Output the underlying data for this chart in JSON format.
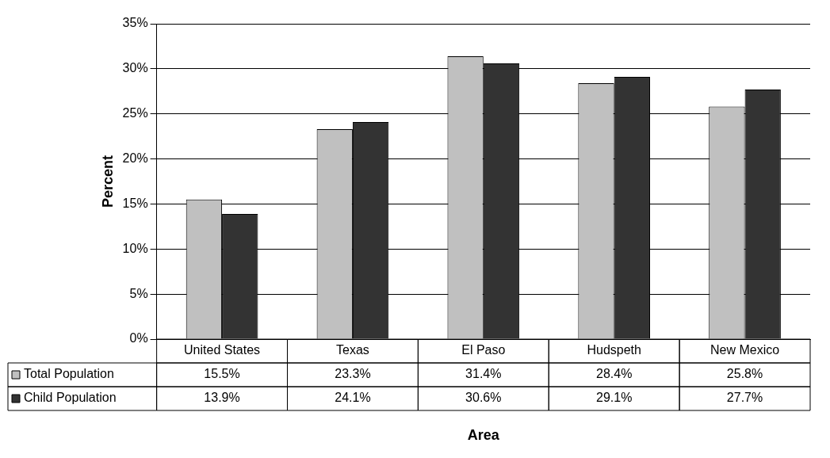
{
  "chart_data": {
    "type": "bar",
    "xlabel": "Area",
    "ylabel": "Percent",
    "categories": [
      "United States",
      "Texas",
      "El Paso",
      "Hudspeth",
      "New Mexico"
    ],
    "series": [
      {
        "name": "Total Population",
        "color": "#c0c0c0",
        "values": [
          15.5,
          23.3,
          31.4,
          28.4,
          25.8
        ],
        "value_labels": [
          "15.5%",
          "23.3%",
          "31.4%",
          "28.4%",
          "25.8%"
        ]
      },
      {
        "name": "Child Population",
        "color": "#333333",
        "values": [
          13.9,
          24.1,
          30.6,
          29.1,
          27.7
        ],
        "value_labels": [
          "13.9%",
          "24.1%",
          "30.6%",
          "29.1%",
          "27.7%"
        ]
      }
    ],
    "ylim": [
      0,
      35
    ],
    "yticks": [
      {
        "value": 0,
        "label": "0%"
      },
      {
        "value": 5,
        "label": "5%"
      },
      {
        "value": 10,
        "label": "10%"
      },
      {
        "value": 15,
        "label": "15%"
      },
      {
        "value": 20,
        "label": "20%"
      },
      {
        "value": 25,
        "label": "25%"
      },
      {
        "value": 30,
        "label": "30%"
      },
      {
        "value": 35,
        "label": "35%"
      }
    ],
    "grid": "y",
    "legend": "bottom left"
  }
}
